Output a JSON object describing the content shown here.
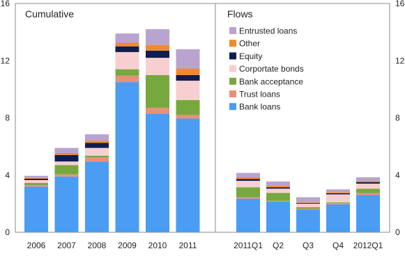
{
  "chart_data": {
    "type": "bar",
    "stacked": true,
    "ylim": [
      0,
      16
    ],
    "yticks": [
      0,
      4,
      8,
      12,
      16
    ],
    "grid": false,
    "legend_position": "top-right panel",
    "panels": [
      {
        "title": "Cumulative",
        "categories": [
          "2006",
          "2007",
          "2008",
          "2009",
          "2010",
          "2011"
        ],
        "series": [
          {
            "name": "Bank loans",
            "color": "#4a9df2",
            "values": [
              3.2,
              3.9,
              4.95,
              10.5,
              8.3,
              7.95
            ]
          },
          {
            "name": "Trust loans",
            "color": "#e8907a",
            "values": [
              0.1,
              0.15,
              0.3,
              0.45,
              0.4,
              0.25
            ]
          },
          {
            "name": "Bank acceptance",
            "color": "#77a83d",
            "values": [
              0.15,
              0.65,
              0.1,
              0.45,
              2.3,
              1.05
            ]
          },
          {
            "name": "Corportate bonds",
            "color": "#f7cfd1",
            "values": [
              0.2,
              0.25,
              0.55,
              1.2,
              1.2,
              1.35
            ]
          },
          {
            "name": "Equity",
            "color": "#0f1d4f",
            "values": [
              0.1,
              0.45,
              0.35,
              0.4,
              0.5,
              0.4
            ]
          },
          {
            "name": "Other",
            "color": "#f08a2e",
            "values": [
              0.05,
              0.15,
              0.15,
              0.25,
              0.4,
              0.45
            ]
          },
          {
            "name": "Entrusted loans",
            "color": "#b9a3cf",
            "values": [
              0.15,
              0.35,
              0.45,
              0.65,
              1.1,
              1.35
            ]
          }
        ]
      },
      {
        "title": "Flows",
        "categories": [
          "2011Q1",
          "Q2",
          "Q3",
          "Q4",
          "2012Q1"
        ],
        "series": [
          {
            "name": "Bank loans",
            "color": "#4a9df2",
            "values": [
              2.35,
              2.15,
              1.6,
              1.95,
              2.6
            ]
          },
          {
            "name": "Trust loans",
            "color": "#e8907a",
            "values": [
              0.1,
              0.05,
              0.05,
              0.1,
              0.15
            ]
          },
          {
            "name": "Bank acceptance",
            "color": "#77a83d",
            "values": [
              0.7,
              0.55,
              0.1,
              0.05,
              0.3
            ]
          },
          {
            "name": "Corportate bonds",
            "color": "#f7cfd1",
            "values": [
              0.45,
              0.3,
              0.25,
              0.55,
              0.35
            ]
          },
          {
            "name": "Equity",
            "color": "#0f1d4f",
            "values": [
              0.12,
              0.1,
              0.05,
              0.08,
              0.1
            ]
          },
          {
            "name": "Other",
            "color": "#f08a2e",
            "values": [
              0.12,
              0.1,
              0.05,
              0.07,
              0.1
            ]
          },
          {
            "name": "Entrusted loans",
            "color": "#b9a3cf",
            "values": [
              0.31,
              0.3,
              0.35,
              0.2,
              0.25
            ]
          }
        ]
      }
    ],
    "legend": [
      "Entrusted loans",
      "Other",
      "Equity",
      "Corportate bonds",
      "Bank acceptance",
      "Trust loans",
      "Bank loans"
    ]
  }
}
